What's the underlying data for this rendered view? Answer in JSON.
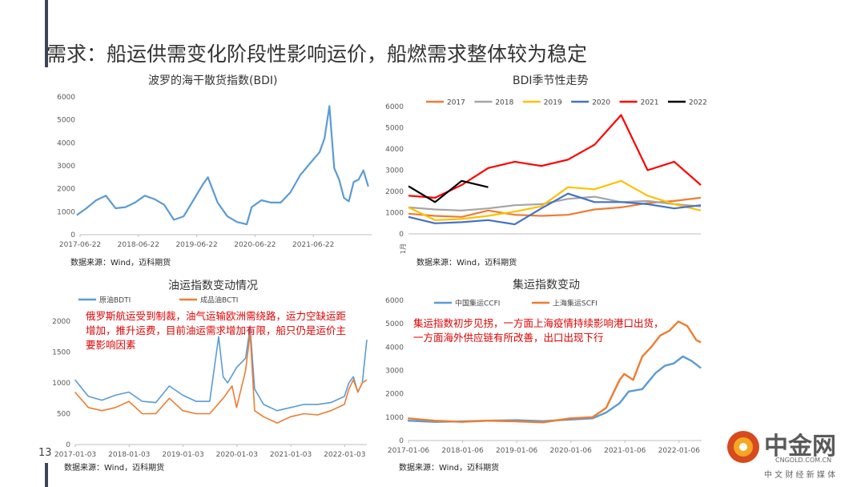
{
  "page": {
    "title": "需求：船运供需变化阶段性影响运价，船燃需求整体较为稳定",
    "page_number": "13",
    "logo_text": "中金网",
    "logo_sub": "CNGOLD.COM.CN",
    "logo_tagline": "中 文 财 经 新 媒 体"
  },
  "colors": {
    "accent_bar": "#3d4556",
    "note": "#e00000"
  },
  "chart_data": [
    {
      "id": "bdi",
      "type": "line",
      "title": "波罗的海干散货指数(BDI)",
      "source": "数据来源：Wind，迈科期货",
      "ylim": [
        0,
        6000
      ],
      "yticks": [
        0,
        1000,
        2000,
        3000,
        4000,
        5000,
        6000
      ],
      "x_range": [
        "2017-06-22",
        "2022-06-22"
      ],
      "xtick_labels": [
        "2017-06-22",
        "2018-06-22",
        "2019-06-22",
        "2020-06-22",
        "2021-06-22"
      ],
      "series": [
        {
          "color": "#5b9bd5",
          "x": [
            "2017-06",
            "2017-08",
            "2017-10",
            "2017-12",
            "2018-02",
            "2018-04",
            "2018-06",
            "2018-08",
            "2018-10",
            "2018-12",
            "2019-02",
            "2019-04",
            "2019-06",
            "2019-08",
            "2019-09",
            "2019-11",
            "2020-01",
            "2020-03",
            "2020-05",
            "2020-06",
            "2020-08",
            "2020-10",
            "2020-12",
            "2021-02",
            "2021-04",
            "2021-06",
            "2021-08",
            "2021-09",
            "2021-10",
            "2021-11",
            "2021-12",
            "2022-01",
            "2022-02",
            "2022-03",
            "2022-04",
            "2022-05",
            "2022-06"
          ],
          "values": [
            850,
            1150,
            1500,
            1700,
            1150,
            1200,
            1400,
            1700,
            1550,
            1300,
            650,
            800,
            1500,
            2200,
            2500,
            1400,
            800,
            550,
            450,
            1200,
            1500,
            1400,
            1400,
            1850,
            2600,
            3100,
            3600,
            4200,
            5600,
            2900,
            2400,
            1600,
            1450,
            2300,
            2400,
            2800,
            2100
          ]
        }
      ]
    },
    {
      "id": "bdi-seasonal",
      "type": "line",
      "title": "BDI季节性走势",
      "source": "数据来源：Wind，迈科期货",
      "ylim": [
        0,
        6000
      ],
      "yticks": [
        0,
        1000,
        2000,
        3000,
        4000,
        5000,
        6000
      ],
      "x_label": "1月",
      "legend_position": "top",
      "series": [
        {
          "name": "2017",
          "color": "#ed7d31",
          "values": [
            950,
            850,
            800,
            1100,
            900,
            850,
            900,
            1150,
            1250,
            1450,
            1550,
            1700
          ]
        },
        {
          "name": "2018",
          "color": "#a5a5a5",
          "values": [
            1250,
            1150,
            1100,
            1200,
            1350,
            1400,
            1650,
            1750,
            1500,
            1550,
            1400,
            1300
          ]
        },
        {
          "name": "2019",
          "color": "#ffc000",
          "values": [
            1250,
            650,
            700,
            850,
            1050,
            1300,
            2200,
            2100,
            2500,
            1800,
            1400,
            1100
          ]
        },
        {
          "name": "2020",
          "color": "#4472c4",
          "values": [
            800,
            500,
            550,
            650,
            450,
            1200,
            1900,
            1500,
            1500,
            1400,
            1200,
            1350
          ]
        },
        {
          "name": "2021",
          "color": "#ff0000",
          "values": [
            1800,
            1700,
            2300,
            3100,
            3400,
            3200,
            3500,
            4200,
            5600,
            3000,
            3400,
            2300
          ]
        },
        {
          "name": "2022",
          "color": "#000000",
          "values": [
            2250,
            1500,
            2500,
            2200
          ]
        }
      ]
    },
    {
      "id": "tanker",
      "type": "line",
      "title": "油运指数变动情况",
      "source": "数据来源：Wind，迈科期货",
      "note": "俄罗斯航运受到制裁，油气运输欧洲需绕路，运力空缺运距增加，推升运费，目前油运需求增加有限，船只仍是运价主要影响因素",
      "ylim": [
        0,
        2000
      ],
      "yticks": [
        0,
        500,
        1000,
        1500,
        2000
      ],
      "x_range": [
        "2017-01-03",
        "2022-06-01"
      ],
      "xtick_labels": [
        "2017-01-03",
        "2018-01-03",
        "2019-01-03",
        "2020-01-03",
        "2021-01-03",
        "2022-01-03"
      ],
      "legend_position": "top-left",
      "series": [
        {
          "name": "原油BDTI",
          "color": "#5b9bd5",
          "x": [
            "2017-01",
            "2017-04",
            "2017-07",
            "2017-10",
            "2018-01",
            "2018-04",
            "2018-07",
            "2018-10",
            "2019-01",
            "2019-04",
            "2019-07",
            "2019-09",
            "2019-10",
            "2019-11",
            "2020-01",
            "2020-03",
            "2020-04",
            "2020-05",
            "2020-07",
            "2020-10",
            "2021-01",
            "2021-04",
            "2021-07",
            "2021-10",
            "2022-01",
            "2022-02",
            "2022-03",
            "2022-04",
            "2022-05",
            "2022-06"
          ],
          "values": [
            1050,
            780,
            720,
            800,
            850,
            700,
            680,
            950,
            800,
            700,
            700,
            1750,
            1100,
            1000,
            1250,
            1400,
            1900,
            900,
            650,
            550,
            600,
            650,
            650,
            680,
            780,
            1000,
            1100,
            850,
            1000,
            1700
          ]
        },
        {
          "name": "成品油BCTI",
          "color": "#ed7d31",
          "x": [
            "2017-01",
            "2017-04",
            "2017-07",
            "2017-10",
            "2018-01",
            "2018-04",
            "2018-07",
            "2018-10",
            "2019-01",
            "2019-04",
            "2019-07",
            "2019-10",
            "2019-12",
            "2020-01",
            "2020-03",
            "2020-04",
            "2020-05",
            "2020-07",
            "2020-10",
            "2021-01",
            "2021-04",
            "2021-07",
            "2021-10",
            "2022-01",
            "2022-02",
            "2022-03",
            "2022-04",
            "2022-05",
            "2022-06"
          ],
          "values": [
            850,
            600,
            550,
            600,
            700,
            500,
            500,
            750,
            550,
            500,
            500,
            750,
            950,
            600,
            1200,
            1800,
            550,
            450,
            350,
            450,
            500,
            480,
            550,
            650,
            900,
            1050,
            850,
            1000,
            1050
          ]
        }
      ]
    },
    {
      "id": "container",
      "type": "line",
      "title": "集运指数变动",
      "source": "数据来源：Wind，迈科期货",
      "note": "集运指数初步见拐，一方面上海疫情持续影响港口出货，一方面海外供应链有所改善，出口出现下行",
      "ylim": [
        0,
        6000
      ],
      "yticks": [
        0,
        1000,
        2000,
        3000,
        4000,
        5000,
        6000
      ],
      "x_range": [
        "2017-01-06",
        "2022-06-06"
      ],
      "xtick_labels": [
        "2017-01-06",
        "2018-01-06",
        "2019-01-06",
        "2020-01-06",
        "2021-01-06",
        "2022-01-06"
      ],
      "legend_position": "top",
      "series": [
        {
          "name": "中国集运CCFI",
          "color": "#5b9bd5",
          "x": [
            "2017-01",
            "2017-07",
            "2018-01",
            "2018-07",
            "2019-01",
            "2019-07",
            "2020-01",
            "2020-06",
            "2020-09",
            "2020-12",
            "2021-02",
            "2021-05",
            "2021-08",
            "2021-10",
            "2021-12",
            "2022-02",
            "2022-04",
            "2022-06"
          ],
          "values": [
            850,
            800,
            820,
            850,
            870,
            830,
            900,
            950,
            1200,
            1600,
            2100,
            2200,
            2900,
            3200,
            3300,
            3600,
            3400,
            3100
          ]
        },
        {
          "name": "上海集运SCFI",
          "color": "#ed7d31",
          "x": [
            "2017-01",
            "2017-07",
            "2018-01",
            "2018-07",
            "2019-01",
            "2019-07",
            "2020-01",
            "2020-06",
            "2020-09",
            "2020-12",
            "2021-01",
            "2021-03",
            "2021-05",
            "2021-07",
            "2021-09",
            "2021-11",
            "2022-01",
            "2022-03",
            "2022-05",
            "2022-06"
          ],
          "values": [
            950,
            850,
            800,
            850,
            820,
            780,
            950,
            1000,
            1400,
            2600,
            2850,
            2600,
            3600,
            4000,
            4500,
            4700,
            5100,
            4900,
            4300,
            4200
          ]
        }
      ]
    }
  ]
}
